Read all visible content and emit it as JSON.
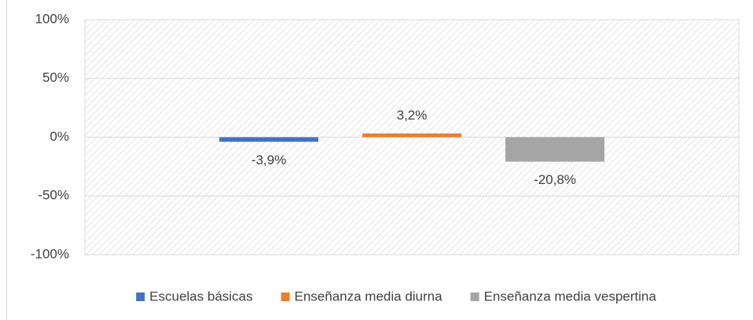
{
  "chart_data": {
    "type": "bar",
    "categories": [
      null
    ],
    "series": [
      {
        "name": "Escuelas básicas",
        "color": "#4472c4",
        "values": [
          -3.9
        ],
        "value_labels": [
          "-3,9%"
        ]
      },
      {
        "name": "Enseñanza media diurna",
        "color": "#ed7d31",
        "values": [
          3.2
        ],
        "value_labels": [
          "3,2%"
        ]
      },
      {
        "name": "Enseñanza media vespertina",
        "color": "#a5a5a5",
        "values": [
          -20.8
        ],
        "value_labels": [
          "-20,8%"
        ]
      }
    ],
    "ylim": [
      -100,
      100
    ],
    "yticks": [
      {
        "value": -100,
        "label": "-100%"
      },
      {
        "value": -50,
        "label": "-50%"
      },
      {
        "value": 0,
        "label": "0%"
      },
      {
        "value": 50,
        "label": "50%"
      },
      {
        "value": 100,
        "label": "100%"
      }
    ],
    "grid": true,
    "legend": "bottom"
  }
}
